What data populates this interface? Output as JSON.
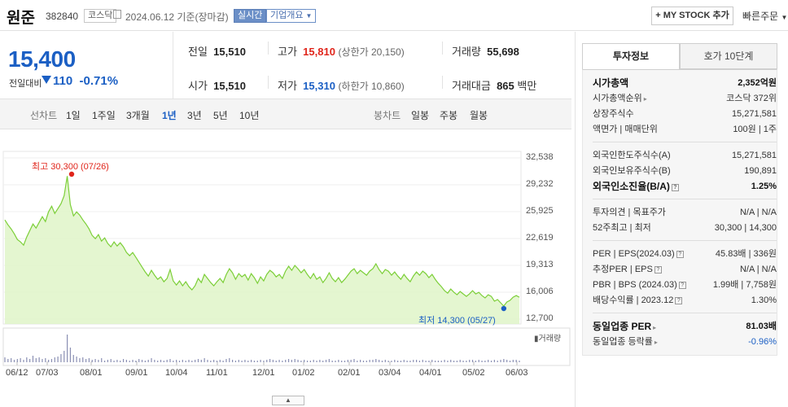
{
  "header": {
    "name": "원준",
    "code": "382840",
    "market": "코스닥",
    "date": "2024.06.12",
    "basis": "기준(장마감)",
    "live": "실시간",
    "corp_overview": "기업개요",
    "mystock": "+ MY STOCK 추가",
    "quick_order": "빠른주문"
  },
  "price": {
    "current": "15,400",
    "change_label": "전일대비",
    "change": "110",
    "change_pct": "-0.71%"
  },
  "quote": {
    "prev_label": "전일",
    "prev": "15,510",
    "high_label": "고가",
    "high": "15,810",
    "upper_limit": "(상한가 20,150)",
    "volume_label": "거래량",
    "volume": "55,698",
    "open_label": "시가",
    "open": "15,510",
    "low_label": "저가",
    "low": "15,310",
    "lower_limit": "(하한가 10,860)",
    "amount_label": "거래대금",
    "amount": "865",
    "amount_unit": "백만"
  },
  "tabs": {
    "line_label": "선차트",
    "periods": [
      "1일",
      "1주일",
      "3개월",
      "1년",
      "3년",
      "5년",
      "10년"
    ],
    "active_period": "1년",
    "candle_label": "봉차트",
    "candles": [
      "일봉",
      "주봉",
      "월봉"
    ]
  },
  "chart_data": {
    "type": "area",
    "y_ticks": [
      "32,538",
      "29,232",
      "25,925",
      "22,619",
      "19,313",
      "16,006",
      "12,700"
    ],
    "ylim": [
      12700,
      32538
    ],
    "x_ticks": [
      "06/12",
      "07/03",
      "08/01",
      "09/01",
      "10/04",
      "11/01",
      "12/01",
      "01/02",
      "02/01",
      "03/04",
      "04/01",
      "05/02",
      "06/03"
    ],
    "high_label": "최고 30,300 (07/26)",
    "low_label": "최저 14,300 (05/27)",
    "volume_label": "거래량",
    "colors": {
      "line": "#7ccf38",
      "fill": "#dff5c8",
      "high": "#e0251b",
      "low": "#1b5fc4"
    },
    "series": [
      {
        "values": [
          24900,
          24300,
          23800,
          23200,
          22500,
          22200,
          21800,
          22800,
          23600,
          24400,
          23900,
          24600,
          25300,
          24700,
          25900,
          26600,
          25700,
          26300,
          26900,
          27900,
          30300,
          26800,
          25400,
          25900,
          25500,
          24900,
          24400,
          23800,
          23000,
          22600,
          23100,
          22300,
          22700,
          22000,
          21600,
          22200,
          21700,
          22100,
          21600,
          20900,
          20500,
          20900,
          20300,
          19700,
          19100,
          18500,
          18000,
          18700,
          18100,
          17600,
          17900,
          17300,
          17700,
          18800,
          17400,
          16900,
          17400,
          16800,
          17300,
          16700,
          16300,
          16800,
          17700,
          17200,
          18200,
          17700,
          17200,
          16800,
          17300,
          17700,
          17200,
          18200,
          18900,
          18400,
          17600,
          18300,
          17900,
          18200,
          17500,
          18300,
          17800,
          17100,
          17900,
          17400,
          18200,
          18700,
          18400,
          17900,
          18200,
          17700,
          18600,
          19200,
          18700,
          19300,
          18900,
          18400,
          18800,
          18200,
          17700,
          18300,
          17600,
          17900,
          17200,
          17700,
          18400,
          17700,
          17300,
          17800,
          17200,
          17600,
          18100,
          18600,
          18900,
          18300,
          18700,
          18400,
          18100,
          18600,
          18900,
          19500,
          18800,
          18300,
          18800,
          18600,
          18100,
          18500,
          18000,
          17600,
          18200,
          17700,
          17300,
          18000,
          18500,
          18100,
          18600,
          18300,
          17800,
          18200,
          17600,
          17100,
          16700,
          16200,
          15900,
          16400,
          16000,
          15700,
          16100,
          15800,
          15500,
          15800,
          16200,
          15800,
          16000,
          15600,
          15300,
          15700,
          15500,
          14900,
          15100,
          14700,
          14300,
          14800,
          15000,
          15400,
          15600,
          15400
        ]
      }
    ]
  },
  "side": {
    "tab_invest": "투자정보",
    "tab_hoga": "호가 10단계",
    "market_cap_label": "시가총액",
    "market_cap": "2,352억원",
    "cap_rank_label": "시가총액순위",
    "cap_rank": "코스닥 372위",
    "shares_label": "상장주식수",
    "shares": "15,271,581",
    "par_label": "액면가 | 매매단위",
    "par": "100원 | 1주",
    "foreign_limit_label": "외국인한도주식수(A)",
    "foreign_limit": "15,271,581",
    "foreign_hold_label": "외국인보유주식수(B)",
    "foreign_hold": "190,891",
    "foreign_rate_label": "외국인소진율(B/A)",
    "foreign_rate": "1.25%",
    "opinion_label": "투자의견 | 목표주가",
    "opinion": "N/A | N/A",
    "w52_label": "52주최고 | 최저",
    "w52": "30,300 | 14,300",
    "per_label": "PER | EPS(2024.03)",
    "per": "45.83배 | 336원",
    "est_per_label": "추정PER | EPS",
    "est_per": "N/A | N/A",
    "pbr_label": "PBR | BPS (2024.03)",
    "pbr": "1.99배 | 7,758원",
    "div_label": "배당수익률 | 2023.12",
    "div": "1.30%",
    "ind_per_label": "동일업종 PER",
    "ind_per": "81.03배",
    "ind_rate_label": "동일업종 등락률",
    "ind_rate": "-0.96%"
  }
}
